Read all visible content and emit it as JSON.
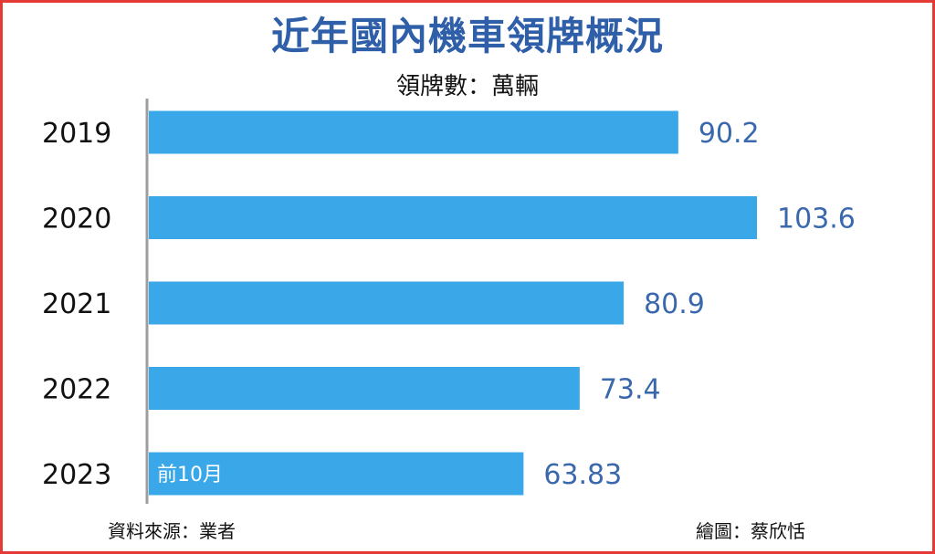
{
  "chart_data": {
    "type": "bar",
    "orientation": "horizontal",
    "title": "近年國內機車領牌概況",
    "subtitle": "領牌數：萬輛",
    "categories": [
      "2019",
      "2020",
      "2021",
      "2022",
      "2023"
    ],
    "values": [
      90.2,
      103.6,
      80.9,
      73.4,
      63.83
    ],
    "value_labels": [
      "90.2",
      "103.6",
      "80.9",
      "73.4",
      "63.83"
    ],
    "bar_notes": [
      "",
      "",
      "",
      "",
      "前10月"
    ],
    "xlim": [
      0,
      103.6
    ],
    "grid": false,
    "bar_color": "#3aa7e8",
    "value_label_color": "#3a68ad",
    "title_color": "#2f5fa8",
    "source": "資料來源：業者",
    "credit": "繪圖：蔡欣恬"
  }
}
